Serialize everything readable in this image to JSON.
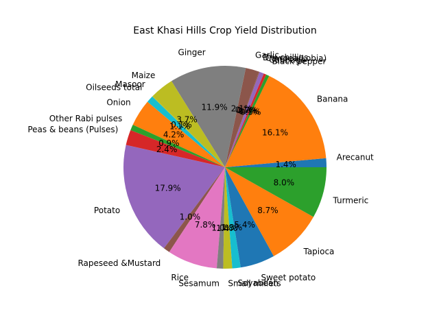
{
  "chart_data": {
    "type": "pie",
    "title": "East Khasi Hills Crop Yield Distribution",
    "start_angle_deg": 0,
    "direction": "counterclockwise",
    "slices": [
      {
        "label": "Arecanut",
        "value": 1.4,
        "pct_text": "1.4%",
        "color": "#1f77b4"
      },
      {
        "label": "Banana",
        "value": 16.1,
        "pct_text": "16.1%",
        "color": "#ff7f0e"
      },
      {
        "label": "Black pepper",
        "value": 0.5,
        "pct_text": "0.5%",
        "color": "#2ca02c"
      },
      {
        "label": "Cabbage",
        "value": 0.4,
        "pct_text": "0.4%",
        "color": "#d62728"
      },
      {
        "label": "Cowpea(Lobia)",
        "value": 0.7,
        "pct_text": "0.7%",
        "color": "#9467bd"
      },
      {
        "label": "Dry chillies",
        "value": 0.1,
        "pct_text": "0.1%",
        "color": "#8c564b"
      },
      {
        "label": "Garlic",
        "value": 2.1,
        "pct_text": "2.1%",
        "color": "#8c564b"
      },
      {
        "label": "Ginger",
        "value": 11.9,
        "pct_text": "11.9%",
        "color": "#7f7f7f"
      },
      {
        "label": "Maize",
        "value": 3.7,
        "pct_text": "3.7%",
        "color": "#bcbd22"
      },
      {
        "label": "Masoor",
        "value": 0.1,
        "pct_text": "0.1%",
        "color": "#bcbd22"
      },
      {
        "label": "Oilseeds total",
        "value": 1.1,
        "pct_text": "1.1%",
        "color": "#17becf"
      },
      {
        "label": "Onion",
        "value": 4.2,
        "pct_text": "4.2%",
        "color": "#ff7f0e"
      },
      {
        "label": "Other Rabi pulses",
        "value": 0.9,
        "pct_text": "0.9%",
        "color": "#2ca02c"
      },
      {
        "label": "Peas & beans (Pulses)",
        "value": 2.4,
        "pct_text": "2.4%",
        "color": "#d62728"
      },
      {
        "label": "Potato",
        "value": 17.9,
        "pct_text": "17.9%",
        "color": "#9467bd"
      },
      {
        "label": "Rapeseed &Mustard",
        "value": 1.0,
        "pct_text": "1.0%",
        "color": "#8c564b"
      },
      {
        "label": "Rice",
        "value": 7.8,
        "pct_text": "7.8%",
        "color": "#e377c2"
      },
      {
        "label": "Sesamum",
        "value": 1.0,
        "pct_text": "1.0%",
        "color": "#7f7f7f"
      },
      {
        "label": "Small millets",
        "value": 1.4,
        "pct_text": "1.4%",
        "color": "#bcbd22"
      },
      {
        "label": "Soyabean",
        "value": 1.3,
        "pct_text": "1.3%",
        "color": "#17becf"
      },
      {
        "label": "Sweet potato",
        "value": 5.4,
        "pct_text": "5.4%",
        "color": "#1f77b4"
      },
      {
        "label": "Tapioca",
        "value": 8.7,
        "pct_text": "8.7%",
        "color": "#ff7f0e"
      },
      {
        "label": "Turmeric",
        "value": 8.0,
        "pct_text": "8.0%",
        "color": "#2ca02c"
      }
    ]
  }
}
